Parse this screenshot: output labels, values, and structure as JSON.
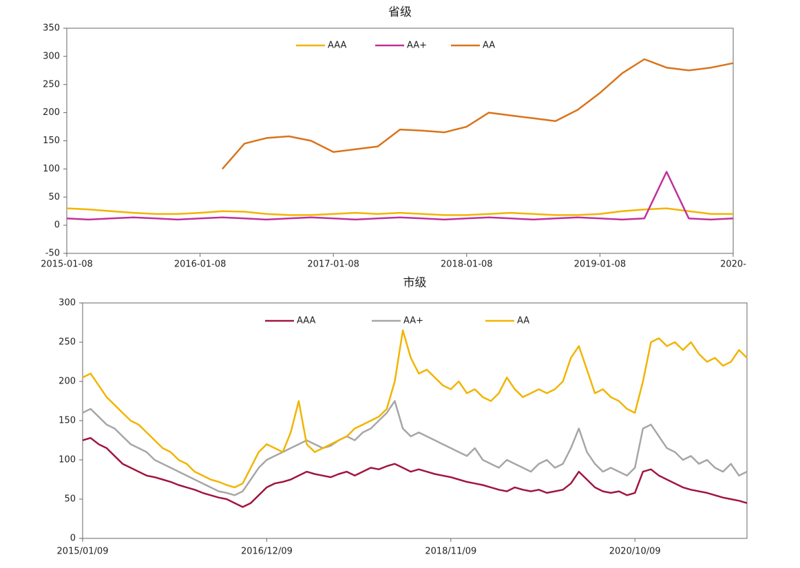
{
  "chart_data": [
    {
      "type": "line",
      "title": "省级",
      "categories": [
        "2015-01-08",
        null,
        null,
        null,
        null,
        null,
        "2016-01-08",
        null,
        null,
        null,
        null,
        null,
        "2017-01-08",
        null,
        null,
        null,
        null,
        null,
        "2018-01-08",
        null,
        null,
        null,
        null,
        null,
        "2019-01-08",
        null,
        null,
        null,
        null,
        null,
        "2020-"
      ],
      "series": [
        {
          "name": "AAA",
          "color": "#f2b400",
          "values": [
            30,
            28,
            25,
            22,
            20,
            20,
            22,
            25,
            24,
            20,
            18,
            18,
            20,
            22,
            20,
            22,
            20,
            18,
            18,
            20,
            22,
            20,
            18,
            18,
            20,
            25,
            28,
            30,
            25,
            20,
            20
          ]
        },
        {
          "name": "AA+",
          "color": "#c0309a",
          "values": [
            12,
            10,
            12,
            14,
            12,
            10,
            12,
            14,
            12,
            10,
            12,
            14,
            12,
            10,
            12,
            14,
            12,
            10,
            12,
            14,
            12,
            10,
            12,
            14,
            12,
            10,
            12,
            95,
            12,
            10,
            12
          ]
        },
        {
          "name": "AA",
          "color": "#d9731a",
          "values": [
            null,
            null,
            null,
            null,
            null,
            null,
            null,
            100,
            145,
            155,
            158,
            150,
            130,
            135,
            140,
            170,
            168,
            165,
            175,
            200,
            195,
            190,
            185,
            205,
            235,
            270,
            295,
            280,
            275,
            280,
            288
          ]
        }
      ],
      "ylim": [
        -50,
        350
      ],
      "yticks": [
        -50,
        0,
        50,
        100,
        150,
        200,
        250,
        300,
        350
      ],
      "legend": "top"
    },
    {
      "type": "line",
      "title": "市级",
      "categories": [
        "2015/01/09",
        null,
        null,
        null,
        null,
        null,
        null,
        null,
        null,
        null,
        null,
        null,
        null,
        null,
        null,
        null,
        null,
        null,
        null,
        null,
        null,
        null,
        null,
        "2016/12/09",
        null,
        null,
        null,
        null,
        null,
        null,
        null,
        null,
        null,
        null,
        null,
        null,
        null,
        null,
        null,
        null,
        null,
        null,
        null,
        null,
        null,
        null,
        "2018/11/09",
        null,
        null,
        null,
        null,
        null,
        null,
        null,
        null,
        null,
        null,
        null,
        null,
        null,
        null,
        null,
        null,
        null,
        null,
        null,
        null,
        null,
        null,
        "2020/10/09",
        null,
        null,
        null,
        null,
        null,
        null,
        null,
        null,
        null,
        null,
        null,
        null,
        null,
        null
      ],
      "series": [
        {
          "name": "AAA",
          "color": "#a0153e",
          "values": [
            125,
            128,
            120,
            115,
            105,
            95,
            90,
            85,
            80,
            78,
            75,
            72,
            68,
            65,
            62,
            58,
            55,
            52,
            50,
            45,
            40,
            45,
            55,
            65,
            70,
            72,
            75,
            80,
            85,
            82,
            80,
            78,
            82,
            85,
            80,
            85,
            90,
            88,
            92,
            95,
            90,
            85,
            88,
            85,
            82,
            80,
            78,
            75,
            72,
            70,
            68,
            65,
            62,
            60,
            65,
            62,
            60,
            62,
            58,
            60,
            62,
            70,
            85,
            75,
            65,
            60,
            58,
            60,
            55,
            58,
            85,
            88,
            80,
            75,
            70,
            65,
            62,
            60,
            58,
            55,
            52,
            50,
            48,
            45
          ]
        },
        {
          "name": "AA+",
          "color": "#a6a6a6",
          "values": [
            160,
            165,
            155,
            145,
            140,
            130,
            120,
            115,
            110,
            100,
            95,
            90,
            85,
            80,
            75,
            70,
            65,
            60,
            58,
            55,
            60,
            75,
            90,
            100,
            105,
            110,
            115,
            120,
            125,
            120,
            115,
            118,
            125,
            130,
            125,
            135,
            140,
            150,
            160,
            175,
            140,
            130,
            135,
            130,
            125,
            120,
            115,
            110,
            105,
            115,
            100,
            95,
            90,
            100,
            95,
            90,
            85,
            95,
            100,
            90,
            95,
            115,
            140,
            110,
            95,
            85,
            90,
            85,
            80,
            90,
            140,
            145,
            130,
            115,
            110,
            100,
            105,
            95,
            100,
            90,
            85,
            95,
            80,
            85
          ]
        },
        {
          "name": "AA",
          "color": "#f2b400",
          "values": [
            205,
            210,
            195,
            180,
            170,
            160,
            150,
            145,
            135,
            125,
            115,
            110,
            100,
            95,
            85,
            80,
            75,
            72,
            68,
            65,
            70,
            90,
            110,
            120,
            115,
            110,
            135,
            175,
            120,
            110,
            115,
            120,
            125,
            130,
            140,
            145,
            150,
            155,
            165,
            200,
            265,
            230,
            210,
            215,
            205,
            195,
            190,
            200,
            185,
            190,
            180,
            175,
            185,
            205,
            190,
            180,
            185,
            190,
            185,
            190,
            200,
            230,
            245,
            215,
            185,
            190,
            180,
            175,
            165,
            160,
            200,
            250,
            255,
            245,
            250,
            240,
            250,
            235,
            225,
            230,
            220,
            225,
            240,
            230
          ]
        }
      ],
      "ylim": [
        0,
        300
      ],
      "yticks": [
        0,
        50,
        100,
        150,
        200,
        250,
        300
      ],
      "legend": "top"
    }
  ]
}
